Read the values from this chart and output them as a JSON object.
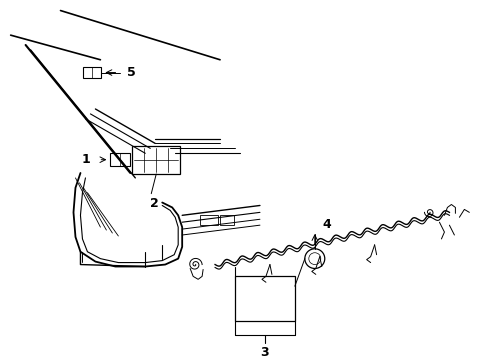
{
  "background_color": "#ffffff",
  "line_color": "#000000",
  "figsize": [
    4.89,
    3.6
  ],
  "dpi": 100,
  "font_size": 9
}
